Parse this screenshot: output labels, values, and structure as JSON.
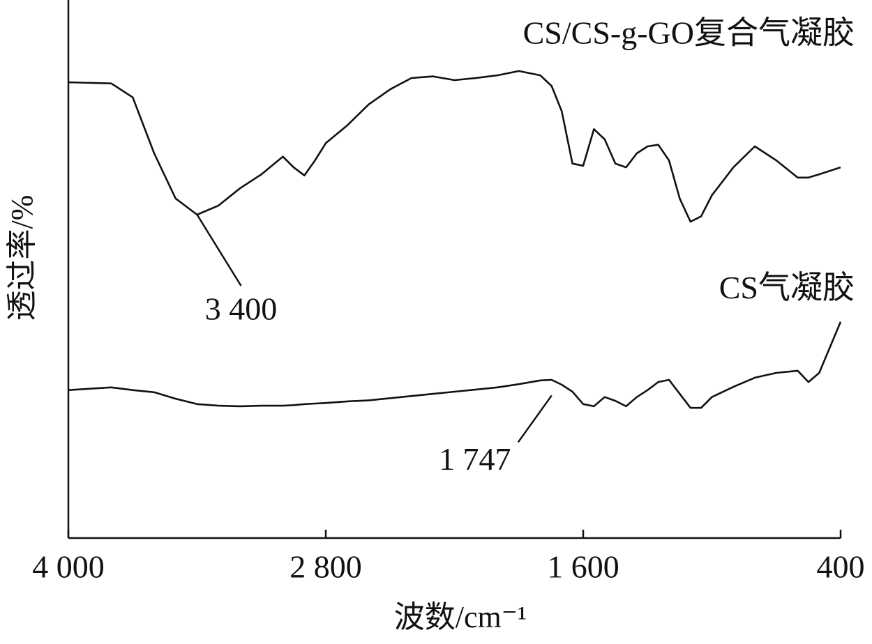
{
  "chart_data": {
    "type": "line",
    "xlabel": "波数/cm⁻¹",
    "ylabel": "透过率/%",
    "x": [
      4000,
      3800,
      3700,
      3600,
      3500,
      3400,
      3300,
      3200,
      3100,
      3000,
      2950,
      2900,
      2850,
      2800,
      2700,
      2600,
      2500,
      2400,
      2300,
      2200,
      2100,
      2000,
      1900,
      1800,
      1747,
      1700,
      1650,
      1600,
      1550,
      1500,
      1450,
      1400,
      1350,
      1300,
      1250,
      1200,
      1150,
      1100,
      1050,
      1000,
      900,
      800,
      700,
      600,
      550,
      500,
      400
    ],
    "series": [
      {
        "name": "CS/CS-g-GO复合气凝胶",
        "color": "#111111",
        "values": [
          84.7,
          84.5,
          81.9,
          71.5,
          63.1,
          60.1,
          61.8,
          65.0,
          67.6,
          70.9,
          68.9,
          67.4,
          70.2,
          73.4,
          76.7,
          80.6,
          83.4,
          85.5,
          85.8,
          85.1,
          85.5,
          86.0,
          86.8,
          86.0,
          84.0,
          79.3,
          69.6,
          69.2,
          76.0,
          74.1,
          69.6,
          68.9,
          71.5,
          72.8,
          73.1,
          70.2,
          63.1,
          58.8,
          59.8,
          63.7,
          68.9,
          72.8,
          70.2,
          67.0,
          67.0,
          67.6,
          68.9
        ]
      },
      {
        "name": "CS气凝胶",
        "color": "#111111",
        "values": [
          27.5,
          28.0,
          27.5,
          27.1,
          25.9,
          24.9,
          24.6,
          24.5,
          24.6,
          24.6,
          24.7,
          24.9,
          25.0,
          25.1,
          25.4,
          25.6,
          26.0,
          26.4,
          26.8,
          27.2,
          27.6,
          28.0,
          28.6,
          29.3,
          29.4,
          28.5,
          27.2,
          24.9,
          24.5,
          26.2,
          25.5,
          24.5,
          26.2,
          27.5,
          29.0,
          29.4,
          26.8,
          24.2,
          24.2,
          26.2,
          28.1,
          29.8,
          30.7,
          31.1,
          29.0,
          30.7,
          40.2
        ]
      }
    ],
    "xlim": [
      4000,
      400
    ],
    "ylim": [
      0,
      100
    ],
    "xticks": [
      {
        "value": 4000,
        "label": "4 000"
      },
      {
        "value": 2800,
        "label": "2 800"
      },
      {
        "value": 1600,
        "label": "1 600"
      },
      400
    ],
    "annotations": [
      {
        "text": "3 400",
        "x": 3400,
        "y": 60.1
      },
      {
        "text": "1 747",
        "x": 1747,
        "y": 26.5
      }
    ]
  }
}
